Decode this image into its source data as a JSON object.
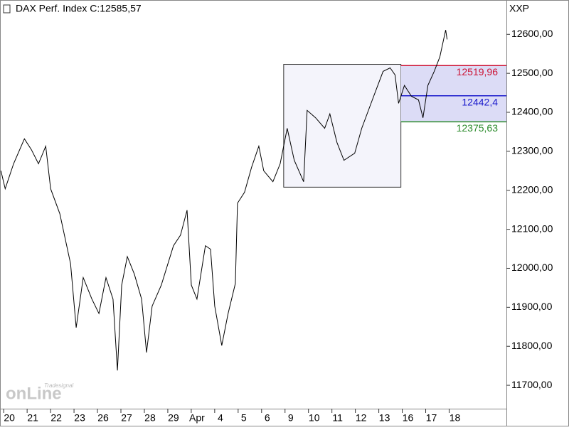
{
  "chart_data": {
    "type": "line",
    "title": "DAX Perf. Index C:12585,57",
    "axis_label": "XXP",
    "logo": "onLine",
    "logo_sub": "Tradesignal",
    "color": "#000000",
    "x": [
      -0.36,
      -0.18,
      0.18,
      0.64,
      0.94,
      1.24,
      1.55,
      1.76,
      2.15,
      2.61,
      2.85,
      3.15,
      3.52,
      3.82,
      4.12,
      4.42,
      4.61,
      4.79,
      5.03,
      5.33,
      5.64,
      5.85,
      6.09,
      6.48,
      7.0,
      7.3,
      7.58,
      7.76,
      8.0,
      8.36,
      8.58,
      8.76,
      9.06,
      9.33,
      9.64,
      9.73,
      10.03,
      10.33,
      10.64,
      10.85,
      11.24,
      11.55,
      11.85,
      12.15,
      12.55,
      12.7,
      13.06,
      13.45,
      13.67,
      13.97,
      14.27,
      14.73,
      15.03,
      15.48,
      15.94,
      16.24,
      16.45,
      16.6,
      16.85,
      17.15,
      17.45,
      17.64,
      17.85,
      18.12,
      18.36,
      18.61,
      18.67
    ],
    "values": [
      12250,
      12204,
      12268,
      12332,
      12304,
      12268,
      12313,
      12204,
      12140,
      12012,
      11848,
      11976,
      11921,
      11884,
      11976,
      11921,
      11738,
      11957,
      12030,
      11985,
      11921,
      11784,
      11903,
      11957,
      12058,
      12085,
      12149,
      11957,
      11921,
      12058,
      12049,
      11903,
      11802,
      11884,
      11961,
      12167,
      12195,
      12259,
      12313,
      12250,
      12222,
      12268,
      12359,
      12277,
      12222,
      12405,
      12386,
      12359,
      12396,
      12323,
      12277,
      12295,
      12359,
      12432,
      12505,
      12514,
      12496,
      12423,
      12469,
      12441,
      12432,
      12386,
      12469,
      12505,
      12542,
      12611,
      12587
    ],
    "xlim": [
      -0.4,
      21.2
    ],
    "ylim": [
      11640,
      12688
    ],
    "xticks": [
      {
        "value": 0,
        "label": "20"
      },
      {
        "value": 1,
        "label": "21"
      },
      {
        "value": 2,
        "label": "22"
      },
      {
        "value": 3,
        "label": "23"
      },
      {
        "value": 4,
        "label": "26"
      },
      {
        "value": 5,
        "label": "27"
      },
      {
        "value": 6,
        "label": "28"
      },
      {
        "value": 7,
        "label": "29"
      },
      {
        "value": 8,
        "label": "Apr"
      },
      {
        "value": 9,
        "label": "4"
      },
      {
        "value": 10,
        "label": "5"
      },
      {
        "value": 11,
        "label": "6"
      },
      {
        "value": 12,
        "label": "9"
      },
      {
        "value": 13,
        "label": "10"
      },
      {
        "value": 14,
        "label": "11"
      },
      {
        "value": 15,
        "label": "12"
      },
      {
        "value": 16,
        "label": "13"
      },
      {
        "value": 17,
        "label": "16"
      },
      {
        "value": 18,
        "label": "17"
      },
      {
        "value": 19,
        "label": "18"
      }
    ],
    "yticks": [
      {
        "value": 11700,
        "label": "11700,00"
      },
      {
        "value": 11800,
        "label": "11800,00"
      },
      {
        "value": 11900,
        "label": "11900,00"
      },
      {
        "value": 12000,
        "label": "12000,00"
      },
      {
        "value": 12100,
        "label": "12100,00"
      },
      {
        "value": 12200,
        "label": "12200,00"
      },
      {
        "value": 12300,
        "label": "12300,00"
      },
      {
        "value": 12400,
        "label": "12400,00"
      },
      {
        "value": 12500,
        "label": "12500,00"
      },
      {
        "value": 12600,
        "label": "12600,00"
      }
    ],
    "zone": {
      "x": [
        11.7,
        16.7
      ],
      "y": [
        12208,
        12523
      ]
    },
    "levels_start": 16.7,
    "levels": [
      {
        "value": 12519.96,
        "label": "12519,96",
        "color": "#cc1133"
      },
      {
        "value": 12442.4,
        "label": "12442,4",
        "color": "#1a1acc"
      },
      {
        "value": 12375.63,
        "label": "12375,63",
        "color": "#2a8a2a"
      }
    ]
  }
}
